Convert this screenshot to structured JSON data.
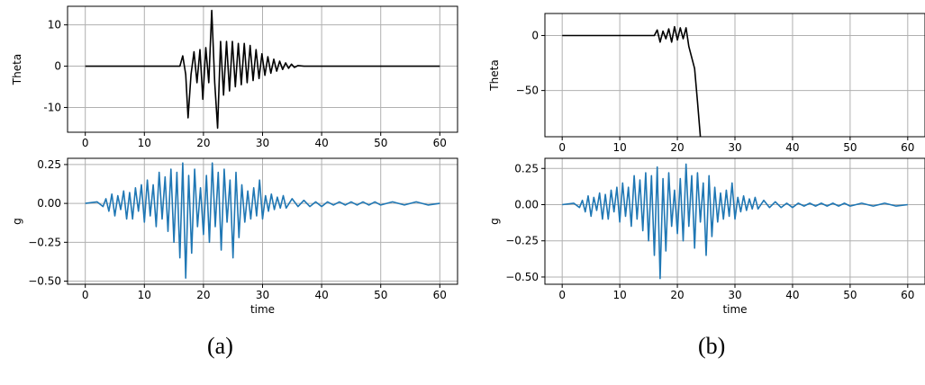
{
  "captions": {
    "a": "(a)",
    "b": "(b)"
  },
  "style": {
    "theta_color": "#000000",
    "g_color": "#1f77b4",
    "grid_color": "#b0b0b0",
    "axes_color": "#000000"
  },
  "chart_data": [
    {
      "id": "a-theta",
      "type": "line",
      "panel": "(a)",
      "xlabel": "",
      "ylabel": "Theta",
      "xlim": [
        -3,
        63
      ],
      "ylim": [
        -16,
        14.5
      ],
      "xticks": [
        0,
        10,
        20,
        30,
        40,
        50,
        60
      ],
      "yticks": [
        10,
        0,
        -10
      ],
      "grid": true,
      "series": [
        {
          "color": "#000000",
          "x": [
            0,
            16,
            16.5,
            17,
            17.4,
            17.9,
            18.4,
            18.9,
            19.4,
            19.9,
            20.4,
            20.9,
            21.4,
            21.9,
            22.4,
            22.9,
            23.4,
            23.9,
            24.4,
            24.9,
            25.4,
            25.9,
            26.4,
            26.9,
            27.4,
            27.9,
            28.4,
            28.9,
            29.4,
            29.9,
            30.4,
            30.9,
            31.4,
            31.9,
            32.4,
            32.9,
            33.4,
            33.9,
            34.4,
            34.9,
            35.4,
            36,
            37,
            60
          ],
          "y": [
            0,
            0,
            2.5,
            -2,
            -12.5,
            -2,
            3.5,
            -4,
            4,
            -8,
            4.5,
            -4,
            13.5,
            -4,
            -15,
            6,
            -7,
            6,
            -6,
            6,
            -5,
            5.5,
            -4.5,
            5.5,
            -4,
            5,
            -3.5,
            4,
            -3,
            3,
            -2.2,
            2.3,
            -1.7,
            1.7,
            -1.2,
            1.2,
            -0.8,
            0.8,
            -0.5,
            0.5,
            -0.3,
            0.15,
            0,
            0
          ]
        }
      ]
    },
    {
      "id": "a-g",
      "type": "line",
      "panel": "(a)",
      "xlabel": "time",
      "ylabel": "g",
      "xlim": [
        -3,
        63
      ],
      "ylim": [
        -0.52,
        0.29
      ],
      "xticks": [
        0,
        10,
        20,
        30,
        40,
        50,
        60
      ],
      "yticks": [
        0.25,
        0.0,
        -0.25,
        -0.5
      ],
      "ytick_labels": [
        "0.25",
        "0.00",
        "−0.25",
        "−0.50"
      ],
      "grid": true,
      "series": [
        {
          "color": "#1f77b4",
          "x": [
            0,
            2,
            3,
            3.5,
            4,
            4.5,
            5,
            5.5,
            6,
            6.5,
            7,
            7.5,
            8,
            8.5,
            9,
            9.5,
            10,
            10.5,
            11,
            11.5,
            12,
            12.5,
            13,
            13.5,
            14,
            14.5,
            15,
            15.5,
            16,
            16.5,
            17,
            17.5,
            18,
            18.5,
            19,
            19.5,
            20,
            20.5,
            21,
            21.5,
            22,
            22.5,
            23,
            23.5,
            24,
            24.5,
            25,
            25.5,
            26,
            26.5,
            27,
            27.5,
            28,
            28.5,
            29,
            29.5,
            30,
            30.5,
            31,
            31.5,
            32,
            32.5,
            33,
            33.5,
            34,
            35,
            36,
            37,
            38,
            39,
            40,
            41,
            42,
            43,
            44,
            45,
            46,
            47,
            48,
            49,
            50,
            52,
            54,
            56,
            58,
            60
          ],
          "y": [
            0,
            0.01,
            -0.02,
            0.03,
            -0.05,
            0.06,
            -0.08,
            0.05,
            -0.04,
            0.08,
            -0.1,
            0.07,
            -0.1,
            0.1,
            -0.05,
            0.12,
            -0.12,
            0.15,
            -0.08,
            0.12,
            -0.15,
            0.2,
            -0.1,
            0.17,
            -0.18,
            0.22,
            -0.25,
            0.2,
            -0.35,
            0.26,
            -0.48,
            0.18,
            -0.32,
            0.22,
            -0.15,
            0.1,
            -0.2,
            0.18,
            -0.25,
            0.26,
            -0.15,
            0.2,
            -0.3,
            0.22,
            -0.12,
            0.15,
            -0.35,
            0.2,
            -0.22,
            0.12,
            -0.12,
            0.08,
            -0.1,
            0.1,
            -0.08,
            0.15,
            -0.1,
            0.05,
            -0.05,
            0.06,
            -0.04,
            0.04,
            -0.03,
            0.05,
            -0.03,
            0.03,
            -0.02,
            0.02,
            -0.02,
            0.01,
            -0.02,
            0.01,
            -0.01,
            0.01,
            -0.01,
            0.01,
            -0.01,
            0.01,
            -0.01,
            0.01,
            -0.01,
            0.01,
            -0.01,
            0.01,
            -0.01,
            0
          ]
        }
      ]
    },
    {
      "id": "b-theta",
      "type": "line",
      "panel": "(b)",
      "xlabel": "",
      "ylabel": "Theta",
      "xlim": [
        -3,
        63
      ],
      "ylim": [
        -92,
        20
      ],
      "xticks": [
        0,
        10,
        20,
        30,
        40,
        50,
        60
      ],
      "yticks": [
        0,
        -50
      ],
      "ytick_labels": [
        "0",
        "−50"
      ],
      "grid": true,
      "series": [
        {
          "color": "#000000",
          "x": [
            0,
            16,
            16.5,
            17,
            17.5,
            18,
            18.5,
            19,
            19.5,
            20,
            20.5,
            21,
            21.5,
            22,
            22.5,
            23,
            23.5,
            23.8,
            24
          ],
          "y": [
            0,
            0,
            5,
            -6,
            4,
            -3,
            6,
            -6,
            8,
            -4,
            7,
            -3,
            7,
            -10,
            -20,
            -30,
            -60,
            -80,
            -92
          ]
        }
      ]
    },
    {
      "id": "b-g",
      "type": "line",
      "panel": "(b)",
      "xlabel": "time",
      "ylabel": "g",
      "xlim": [
        -3,
        63
      ],
      "ylim": [
        -0.55,
        0.32
      ],
      "xticks": [
        0,
        10,
        20,
        30,
        40,
        50,
        60
      ],
      "yticks": [
        0.25,
        0.0,
        -0.25,
        -0.5
      ],
      "ytick_labels": [
        "0.25",
        "0.00",
        "−0.25",
        "−0.50"
      ],
      "grid": true,
      "series": [
        {
          "color": "#1f77b4",
          "x": [
            0,
            2,
            3,
            3.5,
            4,
            4.5,
            5,
            5.5,
            6,
            6.5,
            7,
            7.5,
            8,
            8.5,
            9,
            9.5,
            10,
            10.5,
            11,
            11.5,
            12,
            12.5,
            13,
            13.5,
            14,
            14.5,
            15,
            15.5,
            16,
            16.5,
            17,
            17.5,
            18,
            18.5,
            19,
            19.5,
            20,
            20.5,
            21,
            21.5,
            22,
            22.5,
            23,
            23.5,
            24,
            24.5,
            25,
            25.5,
            26,
            26.5,
            27,
            27.5,
            28,
            28.5,
            29,
            29.5,
            30,
            30.5,
            31,
            31.5,
            32,
            32.5,
            33,
            33.5,
            34,
            35,
            36,
            37,
            38,
            39,
            40,
            41,
            42,
            43,
            44,
            45,
            46,
            47,
            48,
            49,
            50,
            52,
            54,
            56,
            58,
            60
          ],
          "y": [
            0,
            0.01,
            -0.02,
            0.03,
            -0.05,
            0.06,
            -0.08,
            0.05,
            -0.04,
            0.08,
            -0.1,
            0.07,
            -0.1,
            0.1,
            -0.05,
            0.12,
            -0.12,
            0.15,
            -0.08,
            0.12,
            -0.15,
            0.2,
            -0.1,
            0.17,
            -0.18,
            0.22,
            -0.25,
            0.2,
            -0.35,
            0.26,
            -0.51,
            0.18,
            -0.32,
            0.22,
            -0.15,
            0.1,
            -0.2,
            0.18,
            -0.25,
            0.28,
            -0.15,
            0.2,
            -0.3,
            0.22,
            -0.12,
            0.15,
            -0.35,
            0.2,
            -0.22,
            0.12,
            -0.12,
            0.08,
            -0.1,
            0.1,
            -0.08,
            0.15,
            -0.1,
            0.05,
            -0.05,
            0.06,
            -0.04,
            0.04,
            -0.03,
            0.05,
            -0.03,
            0.03,
            -0.02,
            0.02,
            -0.02,
            0.01,
            -0.02,
            0.01,
            -0.01,
            0.01,
            -0.01,
            0.01,
            -0.01,
            0.01,
            -0.01,
            0.01,
            -0.01,
            0.01,
            -0.01,
            0.01,
            -0.01,
            0
          ]
        }
      ]
    }
  ]
}
